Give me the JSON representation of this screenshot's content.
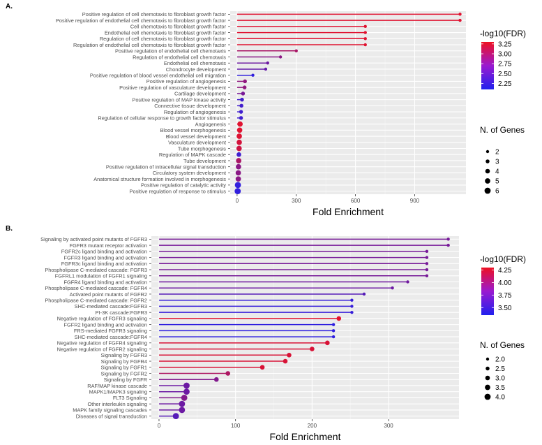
{
  "chart_data": [
    {
      "type": "lollipop",
      "panel_label": "A.",
      "xlabel": "Fold Enrichment",
      "ylabel": "",
      "xlim": [
        -35,
        1160
      ],
      "xticks": [
        0,
        300,
        600,
        900
      ],
      "xtick_labels": [
        "0",
        "300",
        "600",
        "900"
      ],
      "grid": true,
      "color_legend": {
        "title": "-log10(FDR)",
        "min": 2.1,
        "max": 3.3,
        "ticks": [
          3.25,
          3.0,
          2.75,
          2.5,
          2.25
        ],
        "tick_labels": [
          "3.25",
          "3.00",
          "2.75",
          "2.50",
          "2.25"
        ],
        "low_color": "#2020ee",
        "high_color": "#ee1122"
      },
      "size_legend": {
        "title": "N. of Genes",
        "values": [
          2,
          3,
          4,
          5,
          6
        ],
        "labels": [
          "2",
          "3",
          "4",
          "5",
          "6"
        ]
      },
      "terms": [
        {
          "label": "Positive regulation of cell chemotaxis to fibroblast growth factor",
          "fe": 1130,
          "fdr": 3.22,
          "genes": 2
        },
        {
          "label": "Positive regulation of endothelial cell chemotaxis to fibroblast growth factor",
          "fe": 1130,
          "fdr": 3.22,
          "genes": 2
        },
        {
          "label": "Cell chemotaxis to fibroblast growth factor",
          "fe": 650,
          "fdr": 3.22,
          "genes": 2
        },
        {
          "label": "Endothelial cell chemotaxis to fibroblast growth factor",
          "fe": 650,
          "fdr": 3.22,
          "genes": 2
        },
        {
          "label": "Regulation of cell chemotaxis to fibroblast growth factor",
          "fe": 650,
          "fdr": 3.22,
          "genes": 2
        },
        {
          "label": "Regulation of endothelial cell chemotaxis to fibroblast growth factor",
          "fe": 650,
          "fdr": 3.22,
          "genes": 2
        },
        {
          "label": "Positive regulation of endothelial cell chemotaxis",
          "fe": 300,
          "fdr": 2.9,
          "genes": 2
        },
        {
          "label": "Regulation of endothelial cell chemotaxis",
          "fe": 220,
          "fdr": 2.72,
          "genes": 2
        },
        {
          "label": "Endothelial cell chemotaxis",
          "fe": 155,
          "fdr": 2.55,
          "genes": 2
        },
        {
          "label": "Chondrocyte development",
          "fe": 145,
          "fdr": 2.5,
          "genes": 2
        },
        {
          "label": "Positive regulation of blood vessel endothelial cell migration",
          "fe": 80,
          "fdr": 2.2,
          "genes": 2
        },
        {
          "label": "Positive regulation of angiogenesis",
          "fe": 40,
          "fdr": 2.75,
          "genes": 3
        },
        {
          "label": "Positive regulation of vasculature development",
          "fe": 38,
          "fdr": 2.75,
          "genes": 3
        },
        {
          "label": "Cartilage development",
          "fe": 30,
          "fdr": 2.62,
          "genes": 3
        },
        {
          "label": "Positive regulation of MAP kinase activity",
          "fe": 25,
          "fdr": 2.3,
          "genes": 3
        },
        {
          "label": "Connective tissue development",
          "fe": 22,
          "fdr": 2.3,
          "genes": 3
        },
        {
          "label": "Regulation of angiogenesis",
          "fe": 20,
          "fdr": 2.28,
          "genes": 3
        },
        {
          "label": "Regulation of cellular response to growth factor stimulus",
          "fe": 20,
          "fdr": 2.28,
          "genes": 3
        },
        {
          "label": "Angiogenesis",
          "fe": 15,
          "fdr": 3.22,
          "genes": 5
        },
        {
          "label": "Blood vessel morphogenesis",
          "fe": 13,
          "fdr": 3.22,
          "genes": 5
        },
        {
          "label": "Blood vessel development",
          "fe": 11,
          "fdr": 3.2,
          "genes": 5
        },
        {
          "label": "Vasculature development",
          "fe": 11,
          "fdr": 3.15,
          "genes": 5
        },
        {
          "label": "Tube morphogenesis",
          "fe": 10,
          "fdr": 3.1,
          "genes": 5
        },
        {
          "label": "Regulation of MAPK cascade",
          "fe": 9,
          "fdr": 2.28,
          "genes": 4
        },
        {
          "label": "Tube development",
          "fe": 8,
          "fdr": 2.9,
          "genes": 5
        },
        {
          "label": "Positive regulation of intracellular signal transduction",
          "fe": 7,
          "fdr": 2.72,
          "genes": 5
        },
        {
          "label": "Circulatory system development",
          "fe": 6,
          "fdr": 2.72,
          "genes": 5
        },
        {
          "label": "Anatomical structure formation involved in morphogenesis",
          "fe": 6,
          "fdr": 2.72,
          "genes": 5
        },
        {
          "label": "Positive regulation of catalytic activity",
          "fe": 4,
          "fdr": 2.2,
          "genes": 6
        },
        {
          "label": "Positive regulation of response to stimulus",
          "fe": 3,
          "fdr": 2.2,
          "genes": 6
        }
      ]
    },
    {
      "type": "lollipop",
      "panel_label": "B.",
      "xlabel": "Fold Enrichment",
      "ylabel": "",
      "xlim": [
        -10,
        392
      ],
      "xticks": [
        0,
        100,
        200,
        300
      ],
      "xtick_labels": [
        "0",
        "100",
        "200",
        "300"
      ],
      "grid": true,
      "color_legend": {
        "title": "-log10(FDR)",
        "min": 3.35,
        "max": 4.3,
        "ticks": [
          4.25,
          4.0,
          3.75,
          3.5
        ],
        "tick_labels": [
          "4.25",
          "4.00",
          "3.75",
          "3.50"
        ],
        "low_color": "#2020ee",
        "high_color": "#ee1122"
      },
      "size_legend": {
        "title": "N. of Genes",
        "values": [
          2.0,
          2.5,
          3.0,
          3.5,
          4.0
        ],
        "labels": [
          "2.0",
          "2.5",
          "3.0",
          "3.5",
          "4.0"
        ]
      },
      "terms": [
        {
          "label": "Signaling by activated point mutants of FGFR3",
          "fe": 378,
          "fdr": 3.75,
          "genes": 2
        },
        {
          "label": "FGFR3 mutant receptor activation",
          "fe": 378,
          "fdr": 3.75,
          "genes": 2
        },
        {
          "label": "FGFR2c ligand binding and activation",
          "fe": 350,
          "fdr": 3.75,
          "genes": 2
        },
        {
          "label": "FGFR3 ligand binding and activation",
          "fe": 350,
          "fdr": 3.75,
          "genes": 2
        },
        {
          "label": "FGFR3c ligand binding and activation",
          "fe": 350,
          "fdr": 3.75,
          "genes": 2
        },
        {
          "label": "Phospholipase C-mediated cascade: FGFR3",
          "fe": 350,
          "fdr": 3.75,
          "genes": 2
        },
        {
          "label": "FGFRL1 modulation of FGFR1 signaling",
          "fe": 350,
          "fdr": 3.75,
          "genes": 2
        },
        {
          "label": "FGFR4 ligand binding and activation",
          "fe": 325,
          "fdr": 3.72,
          "genes": 2
        },
        {
          "label": "Phospholipase C-mediated cascade: FGFR4",
          "fe": 305,
          "fdr": 3.7,
          "genes": 2
        },
        {
          "label": "Activated point mutants of FGFR2",
          "fe": 268,
          "fdr": 3.6,
          "genes": 2
        },
        {
          "label": "Phospholipase C-mediated cascade: FGFR2",
          "fe": 252,
          "fdr": 3.45,
          "genes": 2
        },
        {
          "label": "SHC-mediated cascade:FGFR3",
          "fe": 252,
          "fdr": 3.45,
          "genes": 2
        },
        {
          "label": "PI-3K cascade:FGFR3",
          "fe": 252,
          "fdr": 3.45,
          "genes": 2
        },
        {
          "label": "Negative regulation of FGFR3 signaling",
          "fe": 235,
          "fdr": 4.25,
          "genes": 3
        },
        {
          "label": "FGFR2 ligand binding and activation",
          "fe": 228,
          "fdr": 3.42,
          "genes": 2
        },
        {
          "label": "FRS-mediated FGFR3 signaling",
          "fe": 228,
          "fdr": 3.42,
          "genes": 2
        },
        {
          "label": "SHC-mediated cascade:FGFR4",
          "fe": 228,
          "fdr": 3.42,
          "genes": 2
        },
        {
          "label": "Negative regulation of FGFR4 signaling",
          "fe": 220,
          "fdr": 4.2,
          "genes": 3
        },
        {
          "label": "Negative regulation of FGFR2 signaling",
          "fe": 200,
          "fdr": 4.2,
          "genes": 3
        },
        {
          "label": "Signaling by FGFR3",
          "fe": 170,
          "fdr": 4.2,
          "genes": 3
        },
        {
          "label": "Signaling by FGFR4",
          "fe": 165,
          "fdr": 4.2,
          "genes": 3
        },
        {
          "label": "Signaling by FGFR1",
          "fe": 135,
          "fdr": 4.2,
          "genes": 3
        },
        {
          "label": "Signaling by FGFR2",
          "fe": 90,
          "fdr": 4.0,
          "genes": 3
        },
        {
          "label": "Signaling by FGFR",
          "fe": 75,
          "fdr": 3.8,
          "genes": 3
        },
        {
          "label": "RAF/MAP kinase cascade",
          "fe": 36,
          "fdr": 3.7,
          "genes": 4
        },
        {
          "label": "MAPK1/MAPK3 signaling",
          "fe": 36,
          "fdr": 3.7,
          "genes": 4
        },
        {
          "label": "FLT3 Signaling",
          "fe": 33,
          "fdr": 3.8,
          "genes": 4
        },
        {
          "label": "Other interleukin signaling",
          "fe": 30,
          "fdr": 3.7,
          "genes": 4
        },
        {
          "label": "MAPK family signaling cascades",
          "fe": 30,
          "fdr": 3.7,
          "genes": 4
        },
        {
          "label": "Diseases of signal transduction",
          "fe": 22,
          "fdr": 3.6,
          "genes": 4
        }
      ]
    }
  ]
}
